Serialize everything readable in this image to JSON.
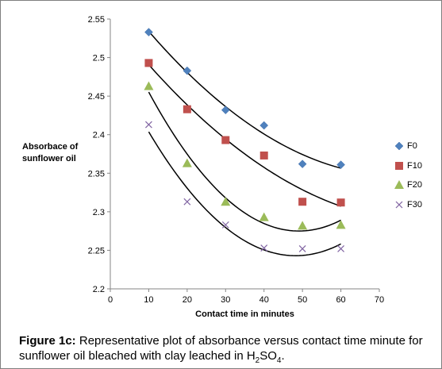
{
  "chart_data": {
    "type": "scatter",
    "ylabel": "Absorbace of\nsunflower oil",
    "xlabel": "Contact time in minutes",
    "xlim": [
      0,
      70
    ],
    "ylim": [
      2.2,
      2.55
    ],
    "x_ticks": [
      "0",
      "10",
      "20",
      "30",
      "40",
      "50",
      "60",
      "70"
    ],
    "y_ticks": [
      "2.2",
      "2.25",
      "2.3",
      "2.35",
      "2.4",
      "2.45",
      "2.5",
      "2.55"
    ],
    "x": [
      10,
      20,
      30,
      40,
      50,
      60
    ],
    "series": [
      {
        "name": "F0",
        "marker": "diamond",
        "color": "#4f81bd",
        "values": [
          2.533,
          2.483,
          2.432,
          2.412,
          2.362,
          2.361
        ]
      },
      {
        "name": "F10",
        "marker": "square",
        "color": "#c0504d",
        "values": [
          2.493,
          2.433,
          2.393,
          2.373,
          2.313,
          2.312
        ]
      },
      {
        "name": "F20",
        "marker": "triangle",
        "color": "#9bbb59",
        "values": [
          2.463,
          2.363,
          2.313,
          2.293,
          2.282,
          2.283
        ]
      },
      {
        "name": "F30",
        "marker": "x",
        "color": "#8064a2",
        "values": [
          2.413,
          2.313,
          2.283,
          2.253,
          2.252,
          2.252
        ]
      }
    ],
    "trendline": "polynomial",
    "legend_position": "right"
  },
  "caption": {
    "label": "Figure 1c:",
    "text_before_formula": " Representative plot of absorbance versus contact time minute for sunflower oil bleached with clay leached in H",
    "sub1": "2",
    "mid": "SO",
    "sub2": "4",
    "end": "."
  }
}
